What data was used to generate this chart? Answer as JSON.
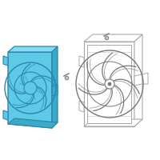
{
  "bg_color": "#ffffff",
  "hl": "#5FC9E8",
  "he": "#2A85AA",
  "hl_light": "#85D9F0",
  "oc": "#AAAAAA",
  "dc": "#777777",
  "screw_color": "#888888",
  "fig_size": [
    2.0,
    2.0
  ],
  "dpi": 100
}
